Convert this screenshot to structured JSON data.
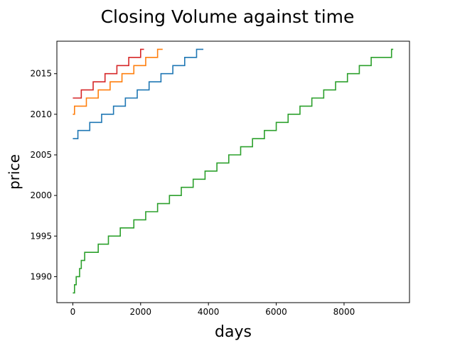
{
  "chart_data": {
    "type": "line",
    "title": "Closing Volume against time",
    "xlabel": "days",
    "ylabel": "price",
    "xlim": [
      -470,
      9930
    ],
    "ylim": [
      1986.8,
      2019.0
    ],
    "xticks": [
      0,
      2000,
      4000,
      6000,
      8000
    ],
    "yticks": [
      1990,
      1995,
      2000,
      2005,
      2010,
      2015
    ],
    "xtick_labels": [
      "0",
      "2000",
      "4000",
      "6000",
      "8000"
    ],
    "ytick_labels": [
      "1990",
      "1995",
      "2000",
      "2005",
      "2010",
      "2015"
    ],
    "grid": false,
    "line_style": "step",
    "series": [
      {
        "color": "#d62728",
        "x": [
          0,
          250,
          600,
          950,
          1300,
          1650,
          2000,
          2100
        ],
        "y": [
          2012,
          2013,
          2014,
          2015,
          2016,
          2017,
          2018,
          2018
        ]
      },
      {
        "color": "#ff7f0e",
        "x": [
          0,
          50,
          400,
          750,
          1100,
          1450,
          1800,
          2150,
          2500,
          2650
        ],
        "y": [
          2010,
          2011,
          2012,
          2013,
          2014,
          2015,
          2016,
          2017,
          2018,
          2018
        ]
      },
      {
        "color": "#1f77b4",
        "x": [
          0,
          150,
          500,
          850,
          1200,
          1550,
          1900,
          2250,
          2600,
          2950,
          3300,
          3650,
          3850
        ],
        "y": [
          2007,
          2008,
          2009,
          2010,
          2011,
          2012,
          2013,
          2014,
          2015,
          2016,
          2017,
          2018,
          2018
        ]
      },
      {
        "color": "#2ca02c",
        "x": [
          0,
          50,
          100,
          150,
          200,
          250,
          350,
          500,
          750,
          1050,
          1400,
          1800,
          2150,
          2500,
          2850,
          3200,
          3550,
          3900,
          4250,
          4600,
          4950,
          5300,
          5650,
          6000,
          6350,
          6700,
          7050,
          7400,
          7750,
          8100,
          8450,
          8800,
          9150,
          9400,
          9450
        ],
        "y": [
          1988,
          1989,
          1990,
          1990,
          1991,
          1992,
          1993,
          1993,
          1994,
          1995,
          1996,
          1997,
          1998,
          1999,
          2000,
          2001,
          2002,
          2003,
          2004,
          2005,
          2006,
          2007,
          2008,
          2009,
          2010,
          2011,
          2012,
          2013,
          2014,
          2015,
          2016,
          2017,
          2017,
          2018,
          2018
        ]
      }
    ]
  }
}
